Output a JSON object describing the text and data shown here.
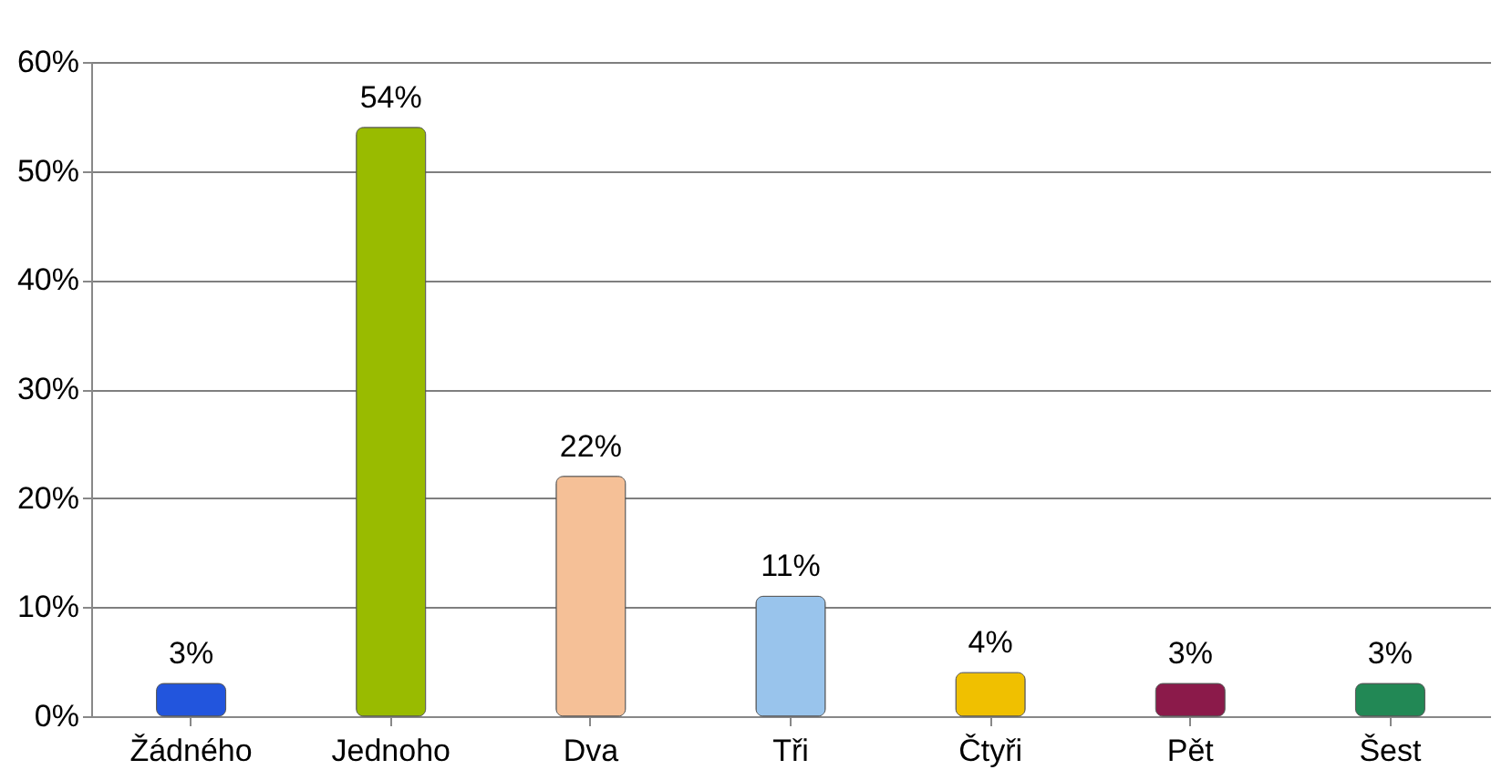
{
  "chart_data": {
    "type": "bar",
    "categories": [
      "Žádného",
      "Jednoho",
      "Dva",
      "Tři",
      "Čtyři",
      "Pět",
      "Šest"
    ],
    "values": [
      3,
      54,
      22,
      11,
      4,
      3,
      3
    ],
    "colors": [
      "#2255dd",
      "#99bb00",
      "#f5c097",
      "#99c4ec",
      "#f0c000",
      "#8b1a4a",
      "#228855"
    ],
    "value_labels": [
      "3%",
      "54%",
      "22%",
      "11%",
      "4%",
      "3%",
      "3%"
    ],
    "ylim": [
      0,
      60
    ],
    "yticks": [
      {
        "value": 0,
        "label": "0%"
      },
      {
        "value": 10,
        "label": "10%"
      },
      {
        "value": 20,
        "label": "20%"
      },
      {
        "value": 30,
        "label": "30%"
      },
      {
        "value": 40,
        "label": "40%"
      },
      {
        "value": 50,
        "label": "50%"
      },
      {
        "value": 60,
        "label": "60%"
      }
    ],
    "grid": "y",
    "legend": false
  }
}
